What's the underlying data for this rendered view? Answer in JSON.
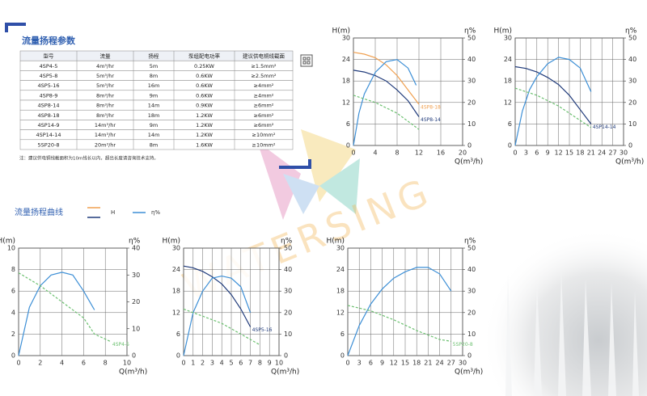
{
  "table_title": "流量扬程参数",
  "table": {
    "header": [
      "型号",
      "流量",
      "扬程",
      "泵组配电功率",
      "建议供电铜线截面"
    ],
    "rows": [
      [
        "4SP4-5",
        "4m³/hr",
        "5m",
        "0.25KW",
        "≥1.5mm²"
      ],
      [
        "4SP5-8",
        "5m³/hr",
        "8m",
        "0.6KW",
        "≥2.5mm²"
      ],
      [
        "4SP5-16",
        "5m³/hr",
        "16m",
        "0.6KW",
        "≥4mm²"
      ],
      [
        "4SP8-9",
        "8m³/hr",
        "9m",
        "0.6KW",
        "≥4mm²"
      ],
      [
        "4SP8-14",
        "8m³/hr",
        "14m",
        "0.9KW",
        "≥6mm²"
      ],
      [
        "4SP8-18",
        "8m³/hr",
        "18m",
        "1.2KW",
        "≥6mm²"
      ],
      [
        "4SP14-9",
        "14m³/hr",
        "9m",
        "1.2KW",
        "≥6mm²"
      ],
      [
        "4SP14-14",
        "14m³/hr",
        "14m",
        "1.2KW",
        "≥10mm²"
      ],
      [
        "5SP20-8",
        "20m³/hr",
        "8m",
        "1.6KW",
        "≥10mm²"
      ]
    ]
  },
  "note": "注：建议供电铜线截面积为10m线长以内，超出长度请咨询技术支持。",
  "curve_title": "流量扬程曲线",
  "legend": [
    "H",
    "η%"
  ],
  "watermark": "WATERSING",
  "chart_data": [
    {
      "type": "line",
      "ylabel": "H(m)",
      "y2label": "η%",
      "xlabel": "Q(m³/h)",
      "xlim": [
        0,
        20
      ],
      "xticks": [
        0,
        4,
        8,
        12,
        16,
        20
      ],
      "ylim": [
        0,
        30
      ],
      "yticks": [
        0,
        6,
        12,
        18,
        24,
        30
      ],
      "y2lim": [
        0,
        50
      ],
      "y2ticks": [
        0,
        10,
        20,
        30,
        40,
        50
      ],
      "grid": true,
      "series": [
        {
          "name": "4SP8-18",
          "color": "#f0a050",
          "x": [
            0,
            2,
            4,
            6,
            8,
            10,
            12
          ],
          "values": [
            26,
            25.5,
            24.5,
            22.5,
            19.5,
            15.5,
            11.5
          ]
        },
        {
          "name": "4SP8-14",
          "color": "#1f3a7a",
          "x": [
            0,
            2,
            4,
            6,
            8,
            10,
            12
          ],
          "values": [
            21,
            20.5,
            19.5,
            18,
            15.5,
            12.5,
            8
          ]
        },
        {
          "color": "#3d8fd6",
          "axis": "y2",
          "x": [
            0,
            1,
            2,
            4,
            6,
            8,
            10,
            11.5
          ],
          "values": [
            0,
            15,
            24,
            34,
            39,
            40,
            36,
            28
          ]
        },
        {
          "color": "#6cc070",
          "dash": true,
          "x": [
            0,
            4,
            8,
            12
          ],
          "values": [
            14,
            12,
            9,
            4.5
          ]
        }
      ]
    },
    {
      "type": "line",
      "ylabel": "H(m)",
      "y2label": "η%",
      "xlabel": "Q(m³/h)",
      "xlim": [
        0,
        30
      ],
      "xticks": [
        0,
        3,
        6,
        9,
        12,
        15,
        18,
        21,
        24,
        27,
        30
      ],
      "ylim": [
        0,
        30
      ],
      "yticks": [
        0,
        6,
        12,
        18,
        24,
        30
      ],
      "y2lim": [
        0,
        50
      ],
      "y2ticks": [
        0,
        10,
        20,
        30,
        40,
        50
      ],
      "grid": true,
      "series": [
        {
          "name": "4SP14-14",
          "color": "#1f3a7a",
          "x": [
            0,
            3,
            6,
            9,
            12,
            15,
            18,
            21
          ],
          "values": [
            22,
            21.5,
            20.5,
            19,
            17,
            14,
            10,
            6
          ]
        },
        {
          "color": "#3d8fd6",
          "axis": "y2",
          "x": [
            0,
            2,
            4,
            6,
            9,
            12,
            15,
            18,
            21
          ],
          "values": [
            0,
            16,
            26,
            32,
            38,
            41,
            40,
            36,
            25
          ]
        },
        {
          "color": "#6cc070",
          "dash": true,
          "x": [
            0,
            6,
            12,
            18,
            21
          ],
          "values": [
            16,
            14,
            11,
            7,
            5
          ]
        }
      ]
    },
    {
      "type": "line",
      "ylabel": "H(m)",
      "y2label": "η%",
      "xlabel": "Q(m³/h)",
      "xlim": [
        0,
        10
      ],
      "xticks": [
        0,
        2,
        4,
        6,
        8,
        10
      ],
      "ylim": [
        0,
        10
      ],
      "yticks": [
        0,
        2,
        4,
        6,
        8,
        10
      ],
      "y2lim": [
        0,
        40
      ],
      "y2ticks": [
        0,
        10,
        20,
        30,
        40
      ],
      "grid": true,
      "series": [
        {
          "color": "#3d8fd6",
          "axis": "y2",
          "x": [
            0,
            1,
            2,
            3,
            4,
            5,
            6,
            7
          ],
          "values": [
            0,
            18,
            26,
            30,
            31,
            30,
            24,
            17
          ]
        },
        {
          "name": "4SP4-5",
          "color": "#6cc070",
          "dash": true,
          "x": [
            0,
            2,
            4,
            6,
            7,
            8.5
          ],
          "values": [
            7.7,
            6.5,
            5,
            3.5,
            2,
            1.3
          ]
        }
      ]
    },
    {
      "type": "line",
      "ylabel": "H(m)",
      "y2label": "η%",
      "xlabel": "Q(m³/h)",
      "xlim": [
        0,
        10
      ],
      "xticks": [
        0,
        1,
        2,
        3,
        4,
        5,
        6,
        7,
        8,
        9,
        10
      ],
      "ylim": [
        0,
        30
      ],
      "yticks": [
        0,
        6,
        12,
        18,
        24,
        30
      ],
      "y2lim": [
        0,
        50
      ],
      "y2ticks": [
        0,
        10,
        20,
        30,
        40,
        50
      ],
      "grid": true,
      "series": [
        {
          "name": "4SP5-16",
          "color": "#1f3a7a",
          "x": [
            0,
            1,
            2,
            3,
            4,
            5,
            6,
            7
          ],
          "values": [
            25,
            24.5,
            23.5,
            22,
            20,
            17,
            13,
            8
          ]
        },
        {
          "color": "#3d8fd6",
          "axis": "y2",
          "x": [
            0,
            1,
            2,
            3,
            4,
            5,
            6,
            7
          ],
          "values": [
            0,
            20,
            30,
            36,
            37,
            36,
            32,
            20
          ]
        },
        {
          "color": "#6cc070",
          "dash": true,
          "x": [
            0,
            2,
            4,
            6,
            8
          ],
          "values": [
            13,
            11,
            9,
            6,
            3
          ]
        }
      ]
    },
    {
      "type": "line",
      "ylabel": "H(m)",
      "y2label": "η%",
      "xlabel": "Q(m³/h)",
      "xlim": [
        0,
        30
      ],
      "xticks": [
        0,
        3,
        6,
        9,
        12,
        15,
        18,
        21,
        24,
        27,
        30
      ],
      "ylim": [
        0,
        30
      ],
      "yticks": [
        0,
        6,
        12,
        18,
        24,
        30
      ],
      "y2lim": [
        0,
        50
      ],
      "y2ticks": [
        0,
        10,
        20,
        30,
        40,
        50
      ],
      "grid": true,
      "series": [
        {
          "color": "#3d8fd6",
          "axis": "y2",
          "x": [
            0,
            3,
            6,
            9,
            12,
            15,
            18,
            21,
            24,
            27
          ],
          "values": [
            0,
            14,
            24,
            31,
            36,
            39,
            41,
            41,
            38,
            30
          ]
        },
        {
          "name": "5SP20-8",
          "color": "#6cc070",
          "dash": true,
          "x": [
            0,
            6,
            12,
            18,
            24,
            27
          ],
          "values": [
            14,
            12.5,
            10,
            7,
            4.5,
            4
          ]
        }
      ]
    }
  ]
}
